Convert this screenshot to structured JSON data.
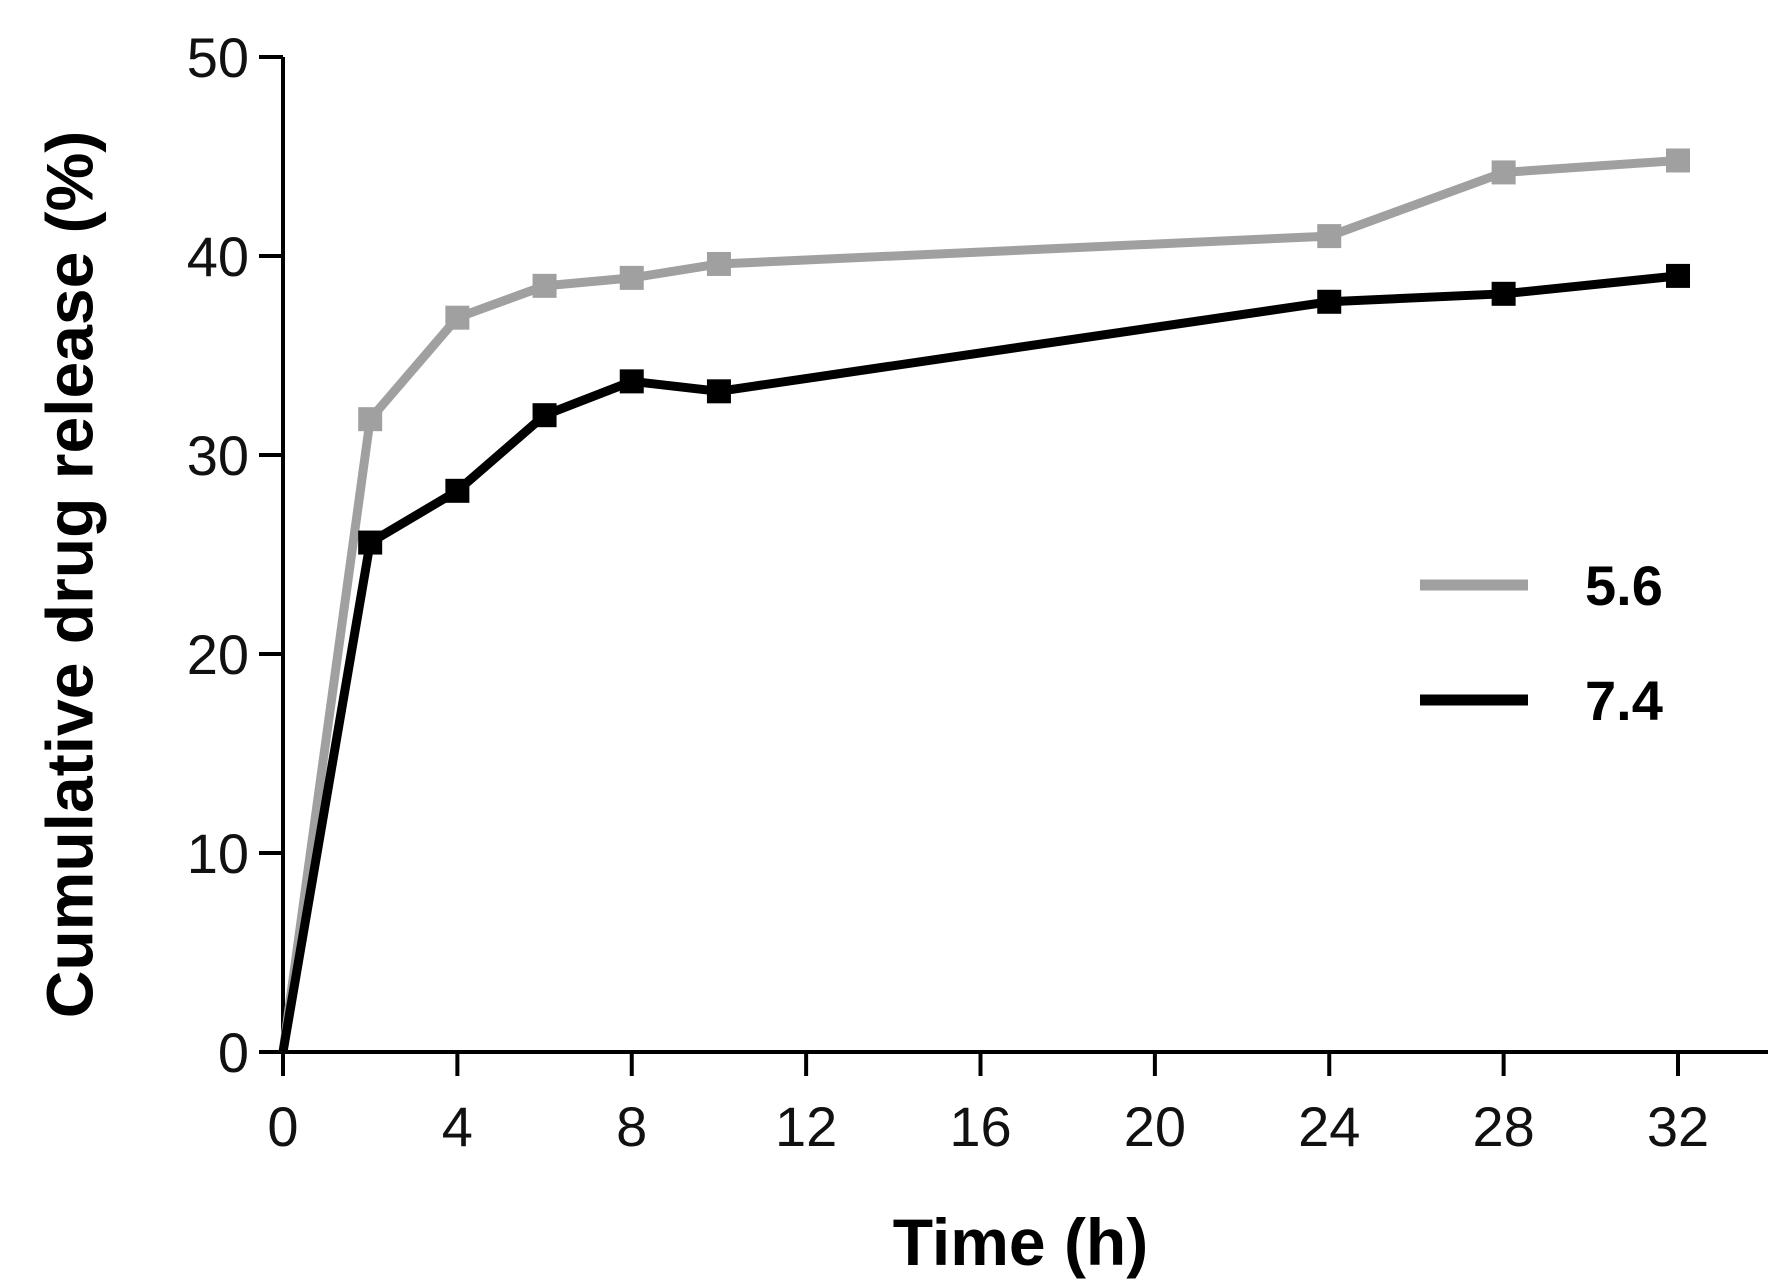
{
  "chart_data": {
    "type": "line",
    "title": "",
    "xlabel": "Time (h)",
    "ylabel": "Cumulative drug release (%)",
    "xlim": [
      0,
      34
    ],
    "ylim": [
      0,
      50
    ],
    "xticks": [
      0,
      4,
      8,
      12,
      16,
      20,
      24,
      28,
      32
    ],
    "yticks": [
      0,
      10,
      20,
      30,
      40,
      50
    ],
    "grid": false,
    "legend_position": "right",
    "x": [
      0,
      2,
      4,
      6,
      8,
      10,
      24,
      28,
      32
    ],
    "series": [
      {
        "name": "5.6",
        "color": "#a0a0a0",
        "values": [
          0,
          31.8,
          36.9,
          38.5,
          38.9,
          39.6,
          41.0,
          44.2,
          44.8
        ]
      },
      {
        "name": "7.4",
        "color": "#000000",
        "values": [
          0,
          25.6,
          28.2,
          32.0,
          33.7,
          33.2,
          37.7,
          38.1,
          39.0
        ]
      }
    ]
  }
}
